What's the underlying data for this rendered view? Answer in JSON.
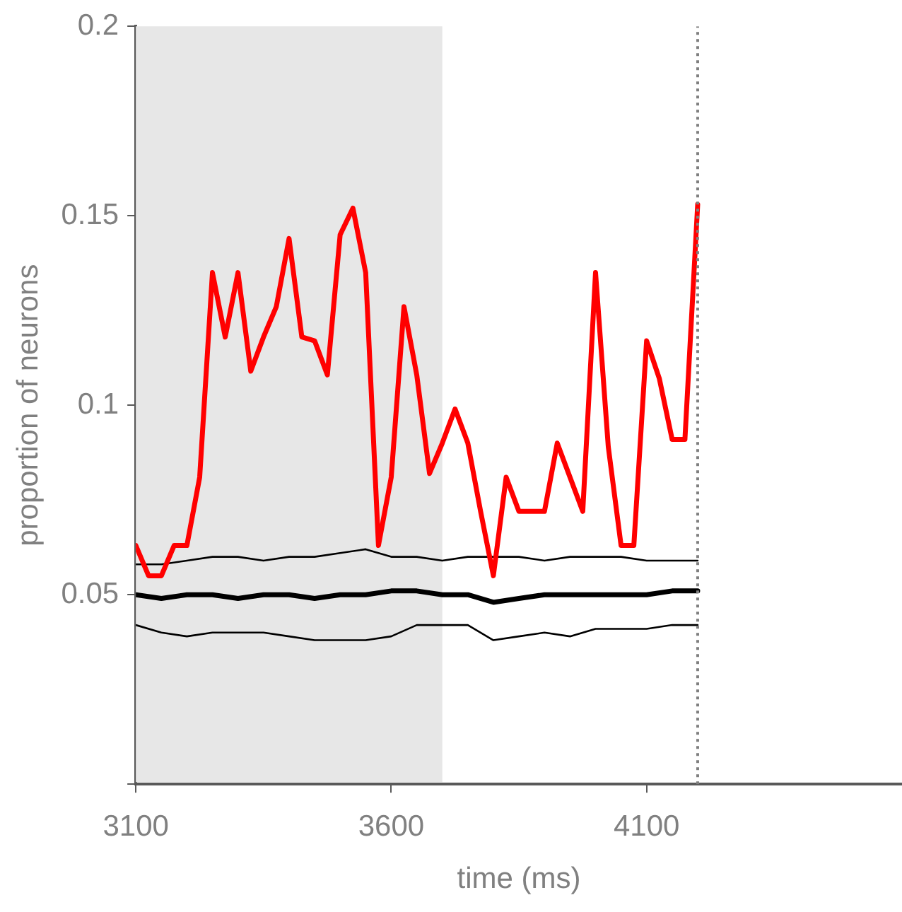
{
  "chart_data": {
    "type": "line",
    "xlabel": "time (ms)",
    "ylabel": "proportion of neurons",
    "xlim": [
      3100,
      4600
    ],
    "xticks": [
      3100,
      3600,
      4100
    ],
    "ylim": [
      0,
      0.2
    ],
    "yticks": [
      {
        "value": 0,
        "label": null
      },
      0.05,
      0.1,
      0.15,
      0.2
    ],
    "grid": false,
    "legend": false,
    "marker": "none",
    "line_style": "solid",
    "bands": [
      {
        "axis": "x",
        "from": 3100,
        "to": 3700,
        "label": null,
        "color": "#e7e7e7"
      }
    ],
    "ref_lines": [
      {
        "axis": "x",
        "value": 4200,
        "label": null,
        "color": "#7f7f7f",
        "line_style": "dotted"
      }
    ],
    "series": [
      {
        "color": "#ff0000",
        "x": [
          3100,
          3125,
          3150,
          3175,
          3200,
          3225,
          3250,
          3275,
          3300,
          3325,
          3350,
          3375,
          3400,
          3425,
          3450,
          3475,
          3500,
          3525,
          3550,
          3575,
          3600,
          3625,
          3650,
          3675,
          3700,
          3725,
          3750,
          3775,
          3800,
          3825,
          3850,
          3875,
          3900,
          3925,
          3950,
          3975,
          4000,
          4025,
          4050,
          4075,
          4100,
          4125,
          4150,
          4175,
          4200
        ],
        "values": [
          0.063,
          0.055,
          0.055,
          0.063,
          0.063,
          0.081,
          0.135,
          0.118,
          0.135,
          0.109,
          0.118,
          0.126,
          0.144,
          0.118,
          0.117,
          0.108,
          0.145,
          0.152,
          0.135,
          0.063,
          0.081,
          0.126,
          0.108,
          0.082,
          0.09,
          0.099,
          0.09,
          0.072,
          0.055,
          0.081,
          0.072,
          0.072,
          0.072,
          0.09,
          0.081,
          0.072,
          0.135,
          0.089,
          0.063,
          0.063,
          0.117,
          0.107,
          0.091,
          0.091,
          0.153
        ]
      },
      {
        "color": "#000000",
        "x": [
          3100,
          3150,
          3200,
          3250,
          3300,
          3350,
          3400,
          3450,
          3500,
          3550,
          3600,
          3650,
          3700,
          3750,
          3800,
          3850,
          3900,
          3950,
          4000,
          4050,
          4100,
          4150,
          4200
        ],
        "values": [
          0.058,
          0.058,
          0.059,
          0.06,
          0.06,
          0.059,
          0.06,
          0.06,
          0.061,
          0.062,
          0.06,
          0.06,
          0.059,
          0.06,
          0.06,
          0.06,
          0.059,
          0.06,
          0.06,
          0.06,
          0.059,
          0.059,
          0.059
        ]
      },
      {
        "color": "#000000",
        "x": [
          3100,
          3150,
          3200,
          3250,
          3300,
          3350,
          3400,
          3450,
          3500,
          3550,
          3600,
          3650,
          3700,
          3750,
          3800,
          3850,
          3900,
          3950,
          4000,
          4050,
          4100,
          4150,
          4200
        ],
        "values": [
          0.05,
          0.049,
          0.05,
          0.05,
          0.049,
          0.05,
          0.05,
          0.049,
          0.05,
          0.05,
          0.051,
          0.051,
          0.05,
          0.05,
          0.048,
          0.049,
          0.05,
          0.05,
          0.05,
          0.05,
          0.05,
          0.051,
          0.051
        ]
      },
      {
        "color": "#000000",
        "x": [
          3100,
          3150,
          3200,
          3250,
          3300,
          3350,
          3400,
          3450,
          3500,
          3550,
          3600,
          3650,
          3700,
          3750,
          3800,
          3850,
          3900,
          3950,
          4000,
          4050,
          4100,
          4150,
          4200
        ],
        "values": [
          0.042,
          0.04,
          0.039,
          0.04,
          0.04,
          0.04,
          0.039,
          0.038,
          0.038,
          0.038,
          0.039,
          0.042,
          0.042,
          0.042,
          0.038,
          0.039,
          0.04,
          0.039,
          0.041,
          0.041,
          0.041,
          0.042,
          0.042
        ]
      }
    ]
  }
}
